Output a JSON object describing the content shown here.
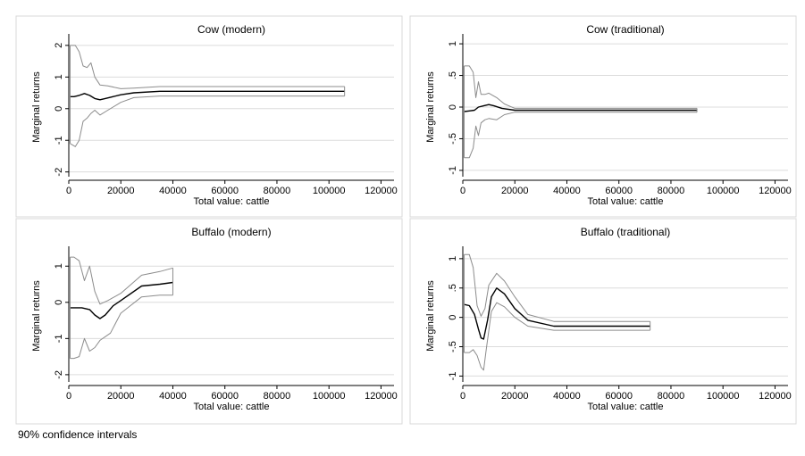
{
  "note": "90% confidence intervals",
  "colors": {
    "estimate": "#000000",
    "ci": "#8c8c8c",
    "grid": "#dcdcdc",
    "frame": "#000000",
    "panel_border": "#d9d9d9"
  },
  "chart_data": [
    {
      "type": "line",
      "title": "Cow (modern)",
      "xlabel": "Total value: cattle",
      "ylabel": "Marginal returns",
      "xlim": [
        0,
        125000
      ],
      "xticks": [
        0,
        20000,
        40000,
        60000,
        80000,
        100000,
        120000
      ],
      "xtick_labels": [
        "0",
        "20000",
        "40000",
        "60000",
        "80000",
        "100000",
        "120000"
      ],
      "ylim": [
        -2.15,
        2.25
      ],
      "yticks": [
        -2,
        -1,
        0,
        1,
        2
      ],
      "ytick_labels": [
        "-2",
        "-1",
        "0",
        "1",
        "2"
      ],
      "grid": true,
      "series": [
        {
          "role": "upper",
          "x": [
            500,
            2500,
            4000,
            5500,
            7000,
            8500,
            10000,
            12000,
            15000,
            20000,
            25000,
            35000,
            50000,
            75000,
            106000
          ],
          "values": [
            2.0,
            2.0,
            1.8,
            1.35,
            1.3,
            1.45,
            1.0,
            0.75,
            0.72,
            0.63,
            0.65,
            0.7,
            0.7,
            0.7,
            0.7
          ]
        },
        {
          "role": "estimate",
          "x": [
            500,
            2000,
            4000,
            6000,
            8000,
            10000,
            12000,
            14000,
            17000,
            20000,
            25000,
            35000,
            50000,
            75000,
            106000
          ],
          "values": [
            0.38,
            0.38,
            0.42,
            0.48,
            0.42,
            0.32,
            0.28,
            0.32,
            0.38,
            0.44,
            0.5,
            0.55,
            0.55,
            0.55,
            0.55
          ]
        },
        {
          "role": "lower",
          "x": [
            500,
            2500,
            4000,
            5500,
            7000,
            8500,
            10000,
            12000,
            15000,
            20000,
            25000,
            35000,
            50000,
            75000,
            106000
          ],
          "values": [
            -1.1,
            -1.2,
            -1.0,
            -0.4,
            -0.3,
            -0.15,
            -0.05,
            -0.2,
            -0.05,
            0.2,
            0.35,
            0.4,
            0.4,
            0.4,
            0.4
          ]
        }
      ]
    },
    {
      "type": "line",
      "title": "Cow (traditional)",
      "xlabel": "Total value: cattle",
      "ylabel": "Marginal returns",
      "xlim": [
        0,
        125000
      ],
      "xticks": [
        0,
        20000,
        40000,
        60000,
        80000,
        100000,
        120000
      ],
      "xtick_labels": [
        "0",
        "20000",
        "40000",
        "60000",
        "80000",
        "100000",
        "120000"
      ],
      "ylim": [
        -1.1,
        1.1
      ],
      "yticks": [
        -1,
        -0.5,
        0,
        0.5,
        1
      ],
      "ytick_labels": [
        "-1",
        "-.5",
        "0",
        ".5",
        "1"
      ],
      "grid": true,
      "series": [
        {
          "role": "upper",
          "x": [
            500,
            2500,
            4000,
            5000,
            6000,
            7000,
            8500,
            10000,
            13000,
            16000,
            20000,
            30000,
            50000,
            90000
          ],
          "values": [
            0.65,
            0.65,
            0.55,
            0.15,
            0.4,
            0.2,
            0.2,
            0.22,
            0.15,
            0.05,
            -0.02,
            -0.02,
            -0.02,
            -0.02
          ]
        },
        {
          "role": "estimate",
          "x": [
            500,
            2500,
            4500,
            6000,
            8000,
            10000,
            12000,
            15000,
            20000,
            30000,
            50000,
            90000
          ],
          "values": [
            -0.07,
            -0.06,
            -0.05,
            0.0,
            0.02,
            0.04,
            0.02,
            -0.02,
            -0.05,
            -0.05,
            -0.05,
            -0.05
          ]
        },
        {
          "role": "lower",
          "x": [
            500,
            2500,
            4000,
            5000,
            6000,
            7000,
            8500,
            10000,
            13000,
            16000,
            20000,
            30000,
            50000,
            90000
          ],
          "values": [
            -0.8,
            -0.8,
            -0.65,
            -0.3,
            -0.45,
            -0.25,
            -0.2,
            -0.18,
            -0.2,
            -0.12,
            -0.08,
            -0.08,
            -0.08,
            -0.08
          ]
        }
      ]
    },
    {
      "type": "line",
      "title": "Buffalo (modern)",
      "xlabel": "Total value: cattle",
      "ylabel": "Marginal returns",
      "xlim": [
        0,
        125000
      ],
      "xticks": [
        0,
        20000,
        40000,
        60000,
        80000,
        100000,
        120000
      ],
      "xtick_labels": [
        "0",
        "20000",
        "40000",
        "60000",
        "80000",
        "100000",
        "120000"
      ],
      "ylim": [
        -2.2,
        1.45
      ],
      "yticks": [
        -2,
        -1,
        0,
        1
      ],
      "ytick_labels": [
        "-2",
        "-1",
        "0",
        "1"
      ],
      "grid": true,
      "series": [
        {
          "role": "upper",
          "x": [
            500,
            2000,
            4000,
            6000,
            8000,
            10000,
            12000,
            15000,
            20000,
            28000,
            35000,
            40000
          ],
          "values": [
            1.25,
            1.25,
            1.15,
            0.6,
            1.0,
            0.3,
            -0.05,
            0.05,
            0.25,
            0.75,
            0.85,
            0.95
          ]
        },
        {
          "role": "estimate",
          "x": [
            500,
            2000,
            5000,
            8000,
            10000,
            12000,
            14000,
            17000,
            20000,
            28000,
            35000,
            40000
          ],
          "values": [
            -0.15,
            -0.15,
            -0.15,
            -0.2,
            -0.35,
            -0.45,
            -0.35,
            -0.1,
            0.05,
            0.45,
            0.5,
            0.55
          ]
        },
        {
          "role": "lower",
          "x": [
            500,
            2000,
            4000,
            6000,
            8000,
            10000,
            12000,
            14000,
            16000,
            20000,
            28000,
            35000,
            40000
          ],
          "values": [
            -1.55,
            -1.55,
            -1.5,
            -1.0,
            -1.35,
            -1.25,
            -1.05,
            -0.95,
            -0.85,
            -0.3,
            0.15,
            0.2,
            0.2
          ]
        }
      ]
    },
    {
      "type": "line",
      "title": "Buffalo (traditional)",
      "xlabel": "Total value: cattle",
      "ylabel": "Marginal returns",
      "xlim": [
        0,
        125000
      ],
      "xticks": [
        0,
        20000,
        40000,
        60000,
        80000,
        100000,
        120000
      ],
      "xtick_labels": [
        "0",
        "20000",
        "40000",
        "60000",
        "80000",
        "100000",
        "120000"
      ],
      "ylim": [
        -1.1,
        1.15
      ],
      "yticks": [
        -1,
        -0.5,
        0,
        0.5,
        1
      ],
      "ytick_labels": [
        "-1",
        "-.5",
        "0",
        ".5",
        "1"
      ],
      "grid": true,
      "series": [
        {
          "role": "upper",
          "x": [
            500,
            2500,
            4000,
            5500,
            7000,
            8500,
            10000,
            13000,
            16000,
            20000,
            25000,
            35000,
            50000,
            72000
          ],
          "values": [
            1.07,
            1.07,
            0.85,
            0.2,
            0.02,
            0.15,
            0.55,
            0.75,
            0.62,
            0.35,
            0.05,
            -0.07,
            -0.07,
            -0.07
          ]
        },
        {
          "role": "estimate",
          "x": [
            500,
            2500,
            4500,
            6000,
            7000,
            8000,
            9500,
            11000,
            13000,
            16000,
            20000,
            25000,
            35000,
            50000,
            72000
          ],
          "values": [
            0.22,
            0.2,
            0.05,
            -0.2,
            -0.35,
            -0.37,
            -0.05,
            0.35,
            0.5,
            0.4,
            0.15,
            -0.05,
            -0.15,
            -0.15,
            -0.15
          ]
        },
        {
          "role": "lower",
          "x": [
            500,
            2500,
            4000,
            5500,
            7000,
            8000,
            9000,
            11000,
            13000,
            16000,
            20000,
            25000,
            35000,
            50000,
            72000
          ],
          "values": [
            -0.6,
            -0.6,
            -0.55,
            -0.65,
            -0.85,
            -0.9,
            -0.55,
            0.1,
            0.25,
            0.18,
            0.0,
            -0.15,
            -0.22,
            -0.22,
            -0.22
          ]
        }
      ]
    }
  ]
}
